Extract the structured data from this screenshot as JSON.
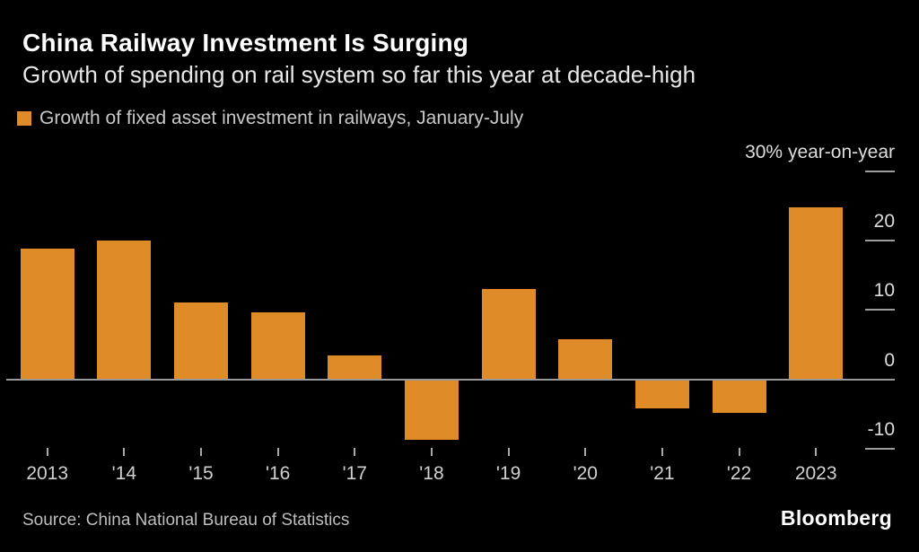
{
  "header": {
    "title": "China Railway Investment Is Surging",
    "subtitle": "Growth of spending on rail system so far this year at decade-high"
  },
  "legend": {
    "label": "Growth of fixed asset investment in railways, January-July",
    "swatch_color": "#df8b28"
  },
  "chart_data": {
    "type": "bar",
    "title": "China Railway Investment Is Surging",
    "series_name": "Growth of fixed asset investment in railways, January-July",
    "categories": [
      "2013",
      "'14",
      "'15",
      "'16",
      "'17",
      "'18",
      "'19",
      "'20",
      "'21",
      "'22",
      "2023"
    ],
    "values": [
      18.9,
      20.0,
      11.1,
      9.6,
      3.4,
      -8.8,
      13.0,
      5.8,
      -4.2,
      -4.8,
      24.9
    ],
    "unit_label": "30% year-on-year",
    "ylabel": "% year-on-year",
    "y_ticks": [
      30,
      20,
      10,
      0,
      -10
    ],
    "y_tick_labels": [
      "30% year-on-year",
      "20",
      "10",
      "0",
      "-10"
    ],
    "ylim": [
      -13,
      31
    ],
    "bar_color": "#df8b28",
    "axis_side": "right",
    "grid": false,
    "legend_position": "top-left"
  },
  "footer": {
    "source": "Source: China National Bureau of Statistics",
    "brand": "Bloomberg"
  }
}
